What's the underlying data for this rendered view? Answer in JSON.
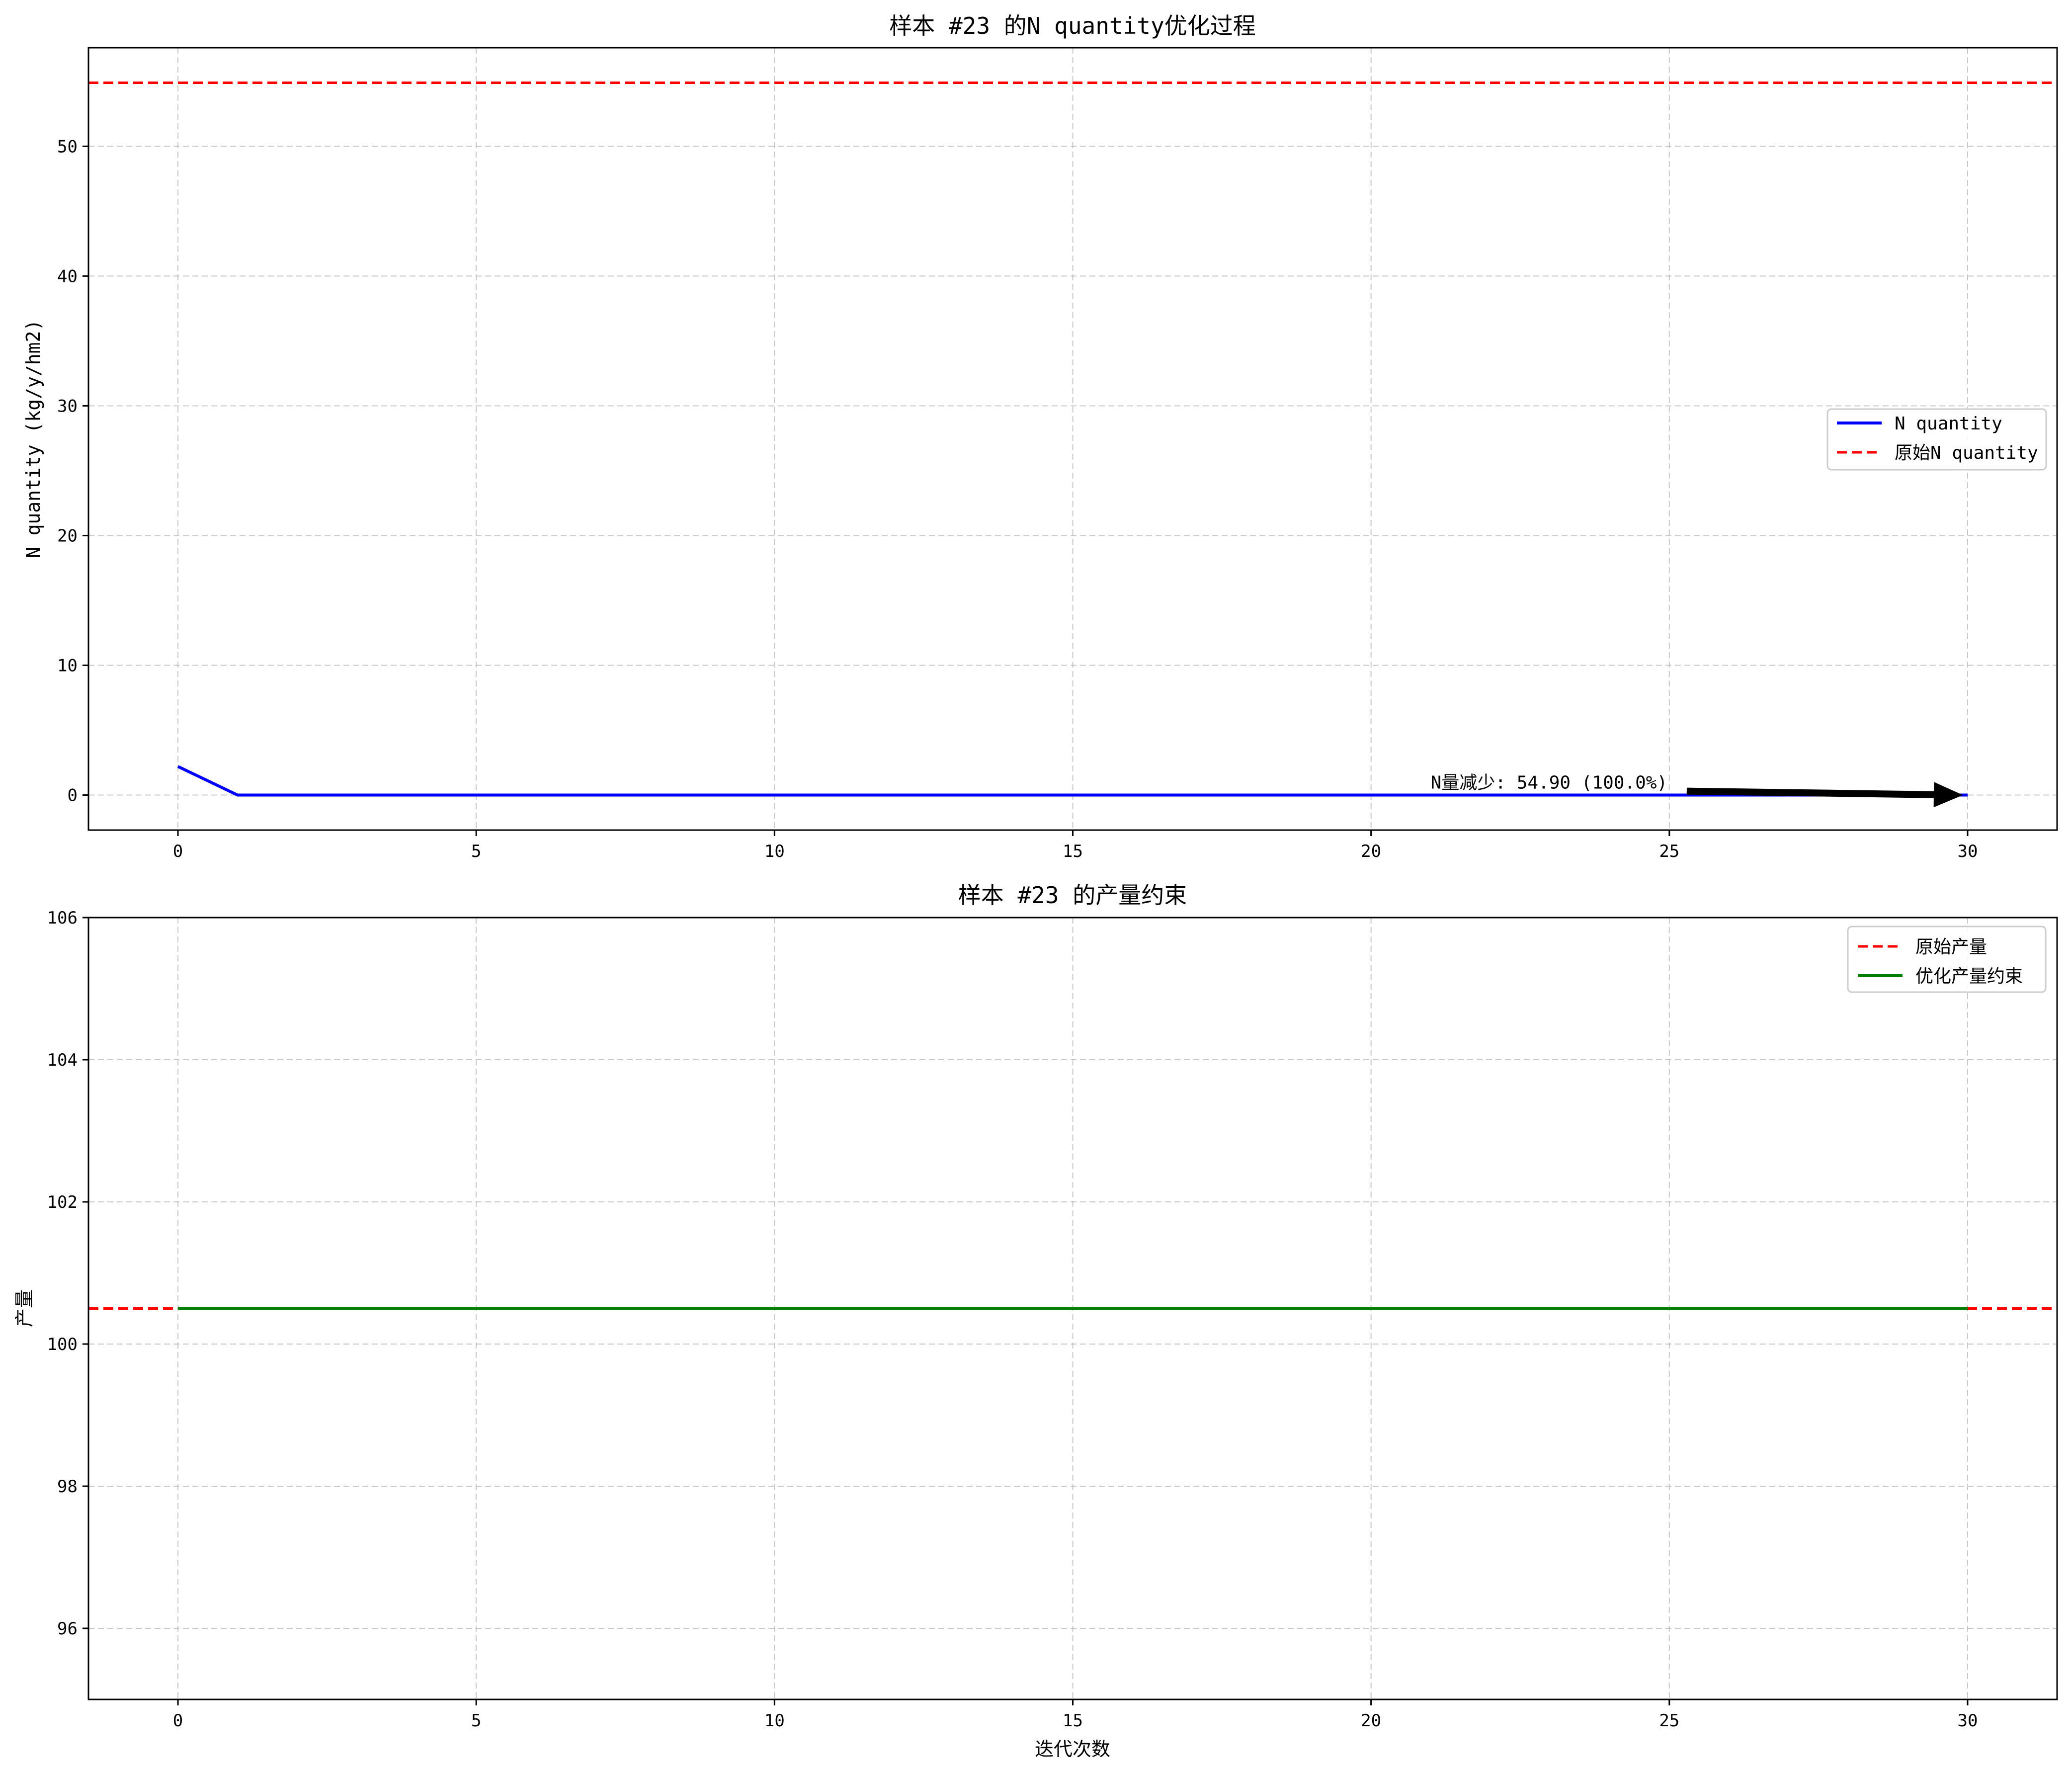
{
  "chart_data": [
    {
      "type": "line",
      "title": "样本 #23 的N quantity优化过程",
      "xlabel": "",
      "ylabel": "N quantity (kg/y/hm2)",
      "xlim": [
        -1.5,
        31.5
      ],
      "ylim": [
        -2.7,
        57.6
      ],
      "xticks": [
        0,
        5,
        10,
        15,
        20,
        25,
        30
      ],
      "yticks": [
        0,
        10,
        20,
        30,
        40,
        50
      ],
      "grid": true,
      "legend_position": "center-right",
      "series": [
        {
          "name": "N quantity",
          "color": "#0000ff",
          "style": "solid",
          "x": [
            0,
            1,
            2,
            3,
            4,
            5,
            6,
            7,
            8,
            9,
            10,
            11,
            12,
            13,
            14,
            15,
            16,
            17,
            18,
            19,
            20,
            21,
            22,
            23,
            24,
            25,
            26,
            27,
            28,
            29,
            30
          ],
          "y": [
            2.2,
            0,
            0,
            0,
            0,
            0,
            0,
            0,
            0,
            0,
            0,
            0,
            0,
            0,
            0,
            0,
            0,
            0,
            0,
            0,
            0,
            0,
            0,
            0,
            0,
            0,
            0,
            0,
            0,
            0,
            0
          ]
        },
        {
          "name": "原始N quantity",
          "color": "#ff0000",
          "style": "dashed",
          "hline": 54.9
        }
      ],
      "annotation": {
        "text": "N量减少: 54.90 (100.0%)",
        "text_x": 21,
        "text_y": 0.5,
        "arrow_from": [
          25.3,
          0.3
        ],
        "arrow_to": [
          30,
          0
        ]
      }
    },
    {
      "type": "line",
      "title": "样本 #23 的产量约束",
      "xlabel": "迭代次数",
      "ylabel": "产量",
      "xlim": [
        -1.5,
        31.5
      ],
      "ylim": [
        95,
        106
      ],
      "xticks": [
        0,
        5,
        10,
        15,
        20,
        25,
        30
      ],
      "yticks": [
        96,
        98,
        100,
        102,
        104,
        106
      ],
      "grid": true,
      "legend_position": "top-right",
      "series": [
        {
          "name": "原始产量",
          "color": "#ff0000",
          "style": "dashed",
          "hline": 100.5
        },
        {
          "name": "优化产量约束",
          "color": "#008000",
          "style": "solid",
          "x": [
            0,
            30
          ],
          "y": [
            100.5,
            100.5
          ]
        }
      ]
    }
  ]
}
